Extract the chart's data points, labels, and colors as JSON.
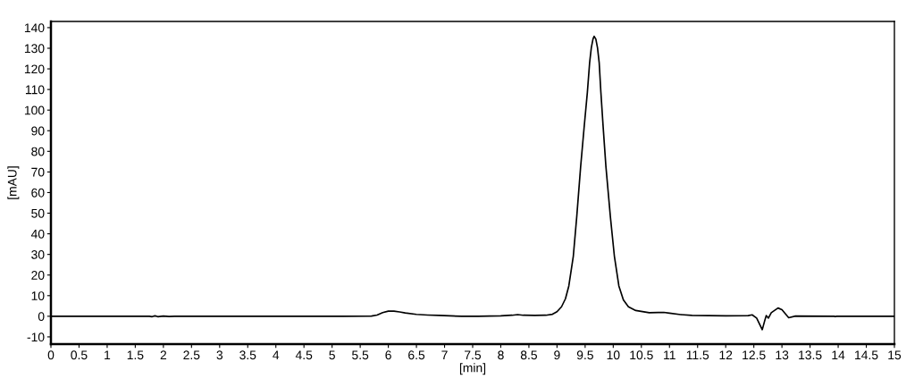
{
  "chart_data": {
    "type": "line",
    "xlabel": "[min]",
    "ylabel": "[mAU]",
    "x": [
      0,
      1.75,
      1.8,
      1.85,
      1.9,
      2.0,
      2.1,
      2.2,
      5.2,
      5.7,
      5.8,
      5.9,
      6.0,
      6.1,
      6.2,
      6.3,
      6.5,
      6.7,
      6.9,
      7.1,
      7.3,
      7.6,
      8.0,
      8.2,
      8.3,
      8.4,
      8.6,
      8.8,
      8.92,
      9.0,
      9.08,
      9.15,
      9.21,
      9.29,
      9.35,
      9.42,
      9.48,
      9.54,
      9.58,
      9.61,
      9.64,
      9.66,
      9.69,
      9.72,
      9.75,
      9.78,
      9.82,
      9.87,
      9.95,
      10.02,
      10.1,
      10.18,
      10.27,
      10.4,
      10.64,
      10.8,
      10.9,
      11.0,
      11.2,
      11.4,
      12.0,
      12.4,
      12.47,
      12.55,
      12.65,
      12.69,
      12.72,
      12.76,
      12.81,
      12.93,
      13.0,
      13.12,
      13.24,
      13.93,
      13.95,
      13.97,
      15
    ],
    "series": [
      {
        "color": "#000000",
        "values": [
          0,
          0,
          -0.2,
          0.2,
          -0.2,
          0.1,
          -0.1,
          0,
          0,
          0.1,
          0.6,
          1.8,
          2.5,
          2.5,
          2.1,
          1.6,
          0.9,
          0.6,
          0.4,
          0.2,
          0,
          0,
          0.2,
          0.5,
          0.8,
          0.5,
          0.4,
          0.5,
          1.0,
          2.2,
          4.6,
          8.5,
          14.7,
          29.2,
          48,
          72.5,
          91,
          108.7,
          123,
          130.3,
          134.5,
          135.8,
          134.5,
          130.3,
          123,
          108.7,
          92,
          72.5,
          48,
          29.2,
          14.7,
          8,
          4.6,
          2.8,
          1.7,
          1.8,
          1.9,
          1.5,
          0.8,
          0.4,
          0.2,
          0.3,
          0.7,
          -0.9,
          -6.5,
          -2.5,
          0.3,
          -0.9,
          1.7,
          4.0,
          3.2,
          -0.7,
          0.1,
          0,
          -0.2,
          0,
          0
        ]
      }
    ],
    "xlim": [
      0,
      15
    ],
    "ylim": [
      -13.5,
      143
    ],
    "xticks": [
      0,
      0.5,
      1,
      1.5,
      2,
      2.5,
      3,
      3.5,
      4,
      4.5,
      5,
      5.5,
      6,
      6.5,
      7,
      7.5,
      8,
      8.5,
      9,
      9.5,
      10,
      10.5,
      11,
      11.5,
      12,
      12.5,
      13,
      13.5,
      14,
      14.5,
      15
    ],
    "yticks": [
      -10,
      0,
      10,
      20,
      30,
      40,
      50,
      60,
      70,
      80,
      90,
      100,
      110,
      120,
      130,
      140
    ],
    "line_style": "solid"
  }
}
